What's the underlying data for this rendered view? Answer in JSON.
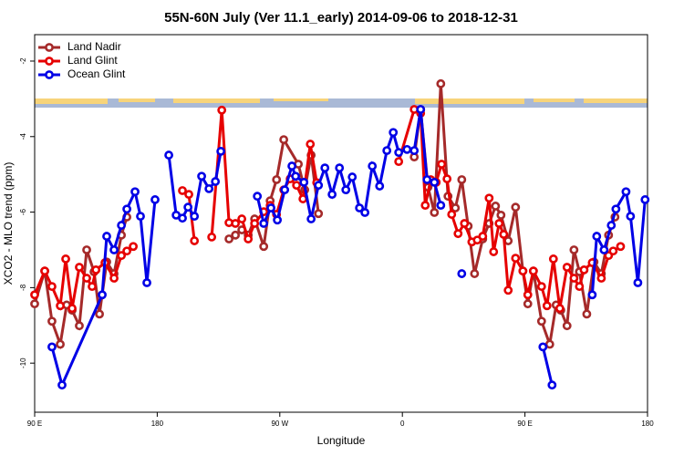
{
  "chart_data": {
    "type": "line",
    "title": "55N-60N July (Ver 11.1_early)   2014-09-06 to 2018-12-31",
    "x_label": "Longitude",
    "y_label": "XCO2 - MLO trend (ppm)",
    "xlim": [
      90,
      540
    ],
    "xticks": [
      {
        "value": 90,
        "label": "90 E"
      },
      180,
      {
        "value": 270,
        "label": "90 W"
      },
      {
        "value": 360,
        "label": "0"
      },
      {
        "value": 450,
        "label": "90 E"
      },
      {
        "value": 540,
        "label": "180"
      }
    ],
    "ylim": [
      -11.3,
      -1.3
    ],
    "yticks": [
      -2,
      -4,
      -6,
      -8,
      -10
    ],
    "legend": "top-left",
    "series": [
      {
        "name": "Land Nadir",
        "color": "#a52a2a",
        "x": [
          90,
          97.4,
          102.7,
          108.8,
          113.5,
          117.5,
          122.8,
          128.2,
          133.6,
          137.6,
          142.9,
          148.3,
          153.7,
          157.7,
          null,
          232.7,
          237.4,
          242.1,
          246.8,
          251.5,
          258.2,
          262.9,
          267.6,
          272.9,
          283.6,
          288.3,
          293,
          298.4,
          null,
          368.7,
          373.4,
          378.8,
          383.5,
          388.2,
          393.5,
          398.9,
          403.6,
          408.3,
          413,
          419,
          423.7,
          428.4,
          432.4,
          437.7,
          443.1,
          448.5,
          452.1,
          456.2,
          462.2,
          468.2,
          472.9,
          476.3,
          480.9,
          486,
          490,
          495.4,
          500.7,
          506.1,
          511.4,
          516.1
        ],
        "values": [
          -8.43,
          -7.56,
          -8.89,
          -9.5,
          -8.46,
          -8.6,
          -9.01,
          -7.0,
          -7.58,
          -8.7,
          -7.32,
          -7.63,
          -6.61,
          -6.13,
          null,
          -6.71,
          -6.61,
          -6.47,
          -6.61,
          -6.18,
          -6.91,
          -5.7,
          -5.14,
          -4.08,
          -4.73,
          -5.41,
          -4.49,
          -6.04,
          null,
          -4.54,
          -3.28,
          -5.34,
          -6.01,
          -2.6,
          -5.58,
          -5.89,
          -5.14,
          -6.37,
          -7.63,
          -6.71,
          -6.3,
          -5.84,
          -6.08,
          -6.76,
          -5.87,
          -7.56,
          -8.43,
          -7.56,
          -8.89,
          -9.5,
          -8.46,
          -8.6,
          -9.01,
          -7.0,
          -7.58,
          -8.7,
          -7.32,
          -7.63,
          -6.61,
          -6.13
        ]
      },
      {
        "name": "Land Glint",
        "color": "#e60000",
        "x": [
          90,
          97.4,
          102.7,
          108.8,
          112.8,
          117.5,
          122.8,
          128.2,
          132.2,
          135,
          141.6,
          148.3,
          153.7,
          157.7,
          162.4,
          null,
          198.5,
          203.2,
          207.3,
          null,
          220,
          227.4,
          232.7,
          237.4,
          242.1,
          246.8,
          251.5,
          258.2,
          262.9,
          267.6,
          272.9,
          277.6,
          282.3,
          287,
          292.4,
          297.1,
          null,
          357.3,
          368.7,
          373.4,
          376.8,
          380.8,
          384.8,
          388.8,
          392.8,
          396.2,
          400.9,
          405.6,
          411,
          415,
          419,
          423.7,
          427,
          431,
          434.4,
          437.7,
          443.1,
          448.5,
          452.1,
          456.2,
          462.2,
          466.2,
          470.9,
          475.6,
          480.9,
          486,
          490,
          493.4,
          499.4,
          506.1,
          511.4,
          514.8,
          520.2
        ],
        "values": [
          -8.19,
          -7.56,
          -7.97,
          -8.48,
          -7.24,
          -8.55,
          -7.46,
          -7.75,
          -7.97,
          -7.53,
          -7.34,
          -7.75,
          -7.15,
          -7.03,
          -6.91,
          null,
          -5.43,
          -5.53,
          -6.76,
          null,
          -6.66,
          -3.3,
          -6.28,
          -6.3,
          -6.18,
          -6.71,
          -6.3,
          -5.99,
          -5.82,
          -6.06,
          -5.41,
          -5.12,
          -5.29,
          -5.65,
          -4.2,
          -5.22,
          null,
          -4.66,
          -3.28,
          -3.38,
          -5.82,
          -5.14,
          -5.21,
          -4.73,
          -5.12,
          -6.06,
          -6.57,
          -6.3,
          -6.79,
          -6.74,
          -6.64,
          -5.63,
          -7.05,
          -6.3,
          -6.59,
          -8.07,
          -7.22,
          -7.56,
          -8.19,
          -7.56,
          -7.97,
          -8.48,
          -7.24,
          -8.55,
          -7.46,
          -7.75,
          -7.97,
          -7.53,
          -7.34,
          -7.75,
          -7.15,
          -7.03,
          -6.91
        ]
      },
      {
        "name": "Ocean Glint",
        "color": "#0000e6",
        "x": [
          102.7,
          110.1,
          139.6,
          142.9,
          148.3,
          153.7,
          157.7,
          163.7,
          167.7,
          172.4,
          178.4,
          null,
          188.5,
          193.9,
          198.5,
          202.6,
          207.3,
          212.6,
          218,
          222.7,
          226.7,
          null,
          253.5,
          258.2,
          263.5,
          268.2,
          273.6,
          278.9,
          281.6,
          287.7,
          293,
          298.4,
          303.1,
          308.4,
          313.8,
          318.5,
          323.2,
          328.5,
          332.5,
          337.9,
          343.3,
          348.6,
          353.3,
          357.3,
          363.4,
          368.7,
          373.4,
          378.1,
          383.5,
          388.2,
          null,
          403.6,
          null,
          463.2,
          469.9,
          null,
          499.4,
          502.7,
          508.1,
          513.4,
          516.8,
          524.2,
          527.5,
          532.9,
          538.2
        ],
        "values": [
          -9.57,
          -10.58,
          -8.19,
          -6.64,
          -7.0,
          -6.35,
          -5.92,
          -5.46,
          -6.11,
          -7.87,
          -5.67,
          null,
          -4.49,
          -6.08,
          -6.16,
          -5.87,
          -6.11,
          -5.05,
          -5.38,
          -5.19,
          -4.39,
          null,
          -5.58,
          -6.3,
          -5.89,
          -6.21,
          -5.41,
          -4.78,
          -5.05,
          -5.21,
          -6.18,
          -5.29,
          -4.83,
          -5.53,
          -4.83,
          -5.41,
          -5.07,
          -5.89,
          -6.01,
          -4.78,
          -5.31,
          -4.37,
          -3.89,
          -4.42,
          -4.34,
          -4.37,
          -3.28,
          -5.14,
          -5.21,
          -5.82,
          null,
          -7.63,
          null,
          -9.57,
          -10.58,
          null,
          -8.19,
          -6.64,
          -7.0,
          -6.35,
          -5.92,
          -5.46,
          -6.11,
          -7.87,
          -5.67
        ]
      }
    ]
  }
}
